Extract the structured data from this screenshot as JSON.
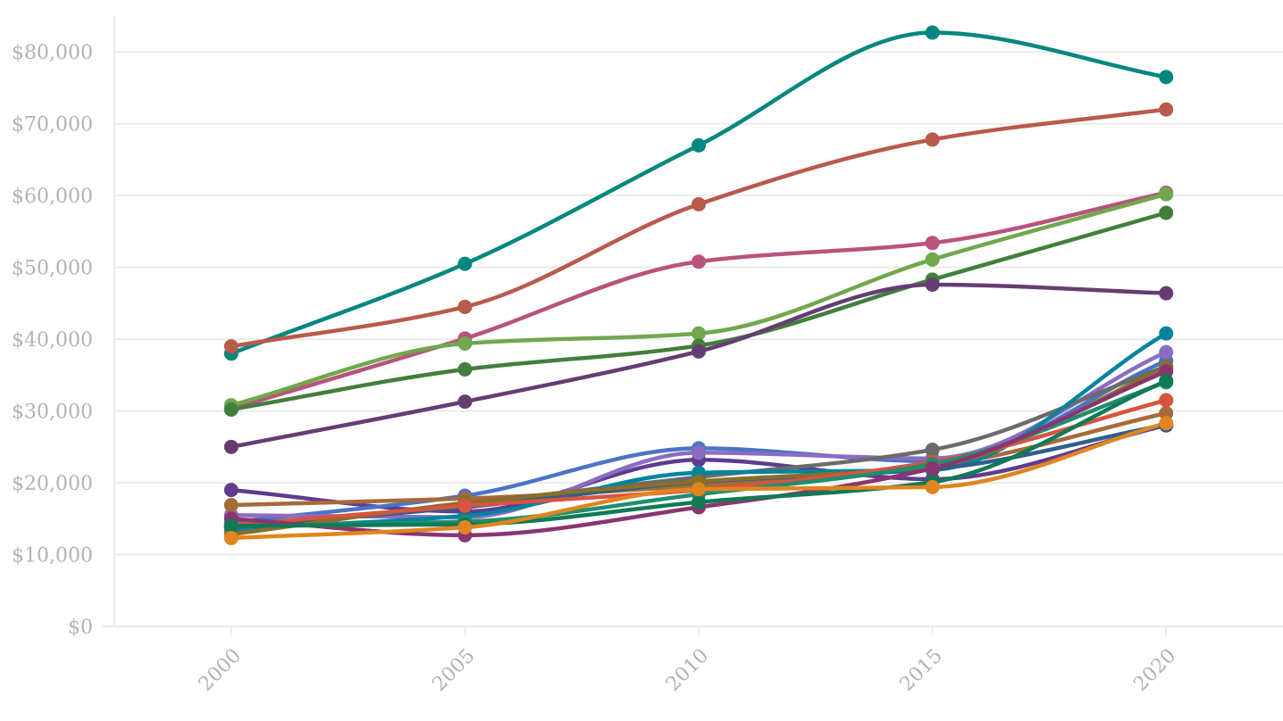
{
  "chart_data": {
    "type": "line",
    "title": "",
    "xlabel": "",
    "ylabel": "",
    "x": [
      2000,
      2005,
      2010,
      2015,
      2020
    ],
    "x_tick_labels": [
      "2000",
      "2005",
      "2010",
      "2015",
      "2020"
    ],
    "y_tick_labels": [
      "$0",
      "$10,000",
      "$20,000",
      "$30,000",
      "$40,000",
      "$50,000",
      "$60,000",
      "$70,000",
      "$80,000"
    ],
    "y_ticks": [
      0,
      10000,
      20000,
      30000,
      40000,
      50000,
      60000,
      70000,
      80000
    ],
    "ylim": [
      0,
      85000
    ],
    "xlim": [
      1997.5,
      2022.5
    ],
    "grid": true,
    "legend": "none",
    "line_style": "smooth",
    "series": [
      {
        "color": "#00877f",
        "values": [
          38000,
          50500,
          67000,
          82700,
          76500
        ]
      },
      {
        "color": "#b85a4c",
        "values": [
          39000,
          44500,
          58800,
          67800,
          72000
        ]
      },
      {
        "color": "#b8537c",
        "values": [
          30300,
          40100,
          50800,
          53400,
          60400
        ]
      },
      {
        "color": "#6fa84d",
        "values": [
          30800,
          39400,
          40800,
          51100,
          60200
        ]
      },
      {
        "color": "#437f3c",
        "values": [
          30200,
          35800,
          39100,
          48300,
          57600
        ]
      },
      {
        "color": "#663d73",
        "values": [
          25000,
          31300,
          38300,
          47600,
          46400
        ]
      },
      {
        "color": "#5f3c8f",
        "values": [
          19000,
          16000,
          23200,
          20500,
          28000
        ]
      },
      {
        "color": "#4a74c4",
        "values": [
          14500,
          18200,
          24800,
          23000,
          37000
        ]
      },
      {
        "color": "#8a6dc2",
        "values": [
          15500,
          15200,
          24200,
          23400,
          38200
        ]
      },
      {
        "color": "#a66a3a",
        "values": [
          16900,
          17800,
          19600,
          22300,
          29700
        ]
      },
      {
        "color": "#6b6b6b",
        "values": [
          13200,
          17100,
          20800,
          24600,
          36200
        ]
      },
      {
        "color": "#00849e",
        "values": [
          13600,
          15400,
          21400,
          21800,
          40800
        ]
      },
      {
        "color": "#2e5f8a",
        "values": [
          13900,
          16600,
          20100,
          21900,
          28100
        ]
      },
      {
        "color": "#8b6e2a",
        "values": [
          12800,
          17200,
          20200,
          22300,
          36000
        ]
      },
      {
        "color": "#d9533f",
        "values": [
          14100,
          16800,
          19000,
          22900,
          31500
        ]
      },
      {
        "color": "#1e8f6e",
        "values": [
          14000,
          14600,
          18400,
          22600,
          34000
        ]
      },
      {
        "color": "#8b3470",
        "values": [
          15000,
          12700,
          16600,
          22000,
          35500
        ]
      },
      {
        "color": "#0f7a55",
        "values": [
          14000,
          14200,
          17300,
          20100,
          34200
        ]
      },
      {
        "color": "#e0851f",
        "values": [
          12300,
          13800,
          19100,
          19400,
          28300
        ]
      }
    ]
  }
}
